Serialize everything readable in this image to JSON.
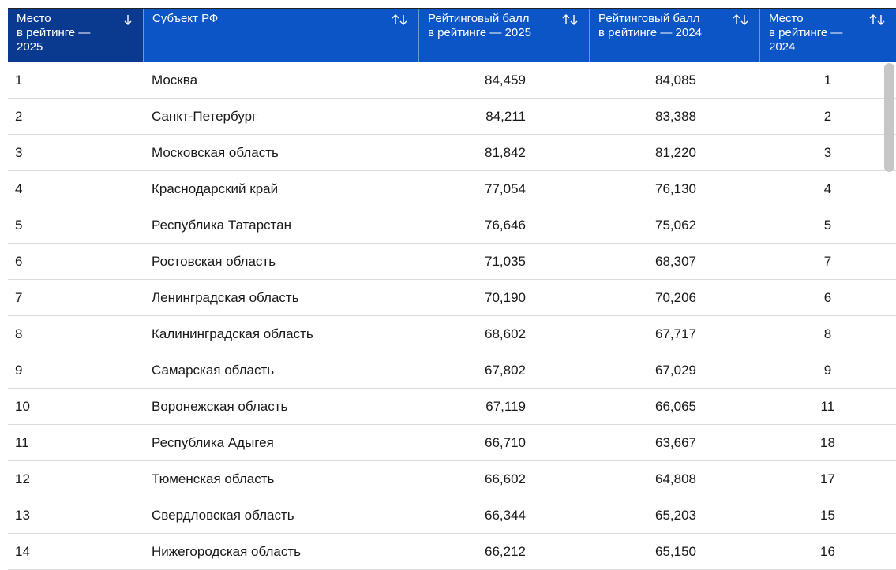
{
  "table": {
    "columns": [
      "Место\nв рейтинге —\n2025",
      "Субъект РФ",
      "Рейтинговый балл\nв рейтинге — 2025",
      "Рейтинговый балл\nв рейтинге — 2024",
      "Место\nв рейтинге —\n2024"
    ],
    "rows": [
      [
        1,
        "Москва",
        "84,459",
        "84,085",
        1
      ],
      [
        2,
        "Санкт-Петербург",
        "84,211",
        "83,388",
        2
      ],
      [
        3,
        "Московская область",
        "81,842",
        "81,220",
        3
      ],
      [
        4,
        "Краснодарский край",
        "77,054",
        "76,130",
        4
      ],
      [
        5,
        "Республика Татарстан",
        "76,646",
        "75,062",
        5
      ],
      [
        6,
        "Ростовская область",
        "71,035",
        "68,307",
        7
      ],
      [
        7,
        "Ленинградская область",
        "70,190",
        "70,206",
        6
      ],
      [
        8,
        "Калининградская область",
        "68,602",
        "67,717",
        8
      ],
      [
        9,
        "Самарская область",
        "67,802",
        "67,029",
        9
      ],
      [
        10,
        "Воронежская область",
        "67,119",
        "66,065",
        11
      ],
      [
        11,
        "Республика Адыгея",
        "66,710",
        "63,667",
        18
      ],
      [
        12,
        "Тюменская область",
        "66,602",
        "64,808",
        17
      ],
      [
        13,
        "Свердловская область",
        "66,344",
        "65,203",
        15
      ],
      [
        14,
        "Нижегородская область",
        "66,212",
        "65,150",
        16
      ]
    ]
  }
}
